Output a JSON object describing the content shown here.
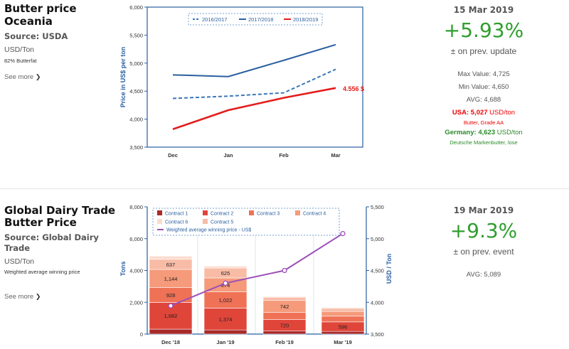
{
  "panel1": {
    "title_line1": "Butter price",
    "title_line2": "Oceania",
    "source": "Source: USDA",
    "unit": "USD/Ton",
    "note": "82% Butterfat",
    "see_more": "See more",
    "arrow": "❯",
    "date": "15 Mar 2019",
    "change": "+5.93%",
    "change_label": "± on prev. update",
    "max_value": "Max Value: 4,725",
    "min_value": "Min Value: 4,650",
    "avg": "AVG: 4,688",
    "usa_label": "USA: ",
    "usa_value": "5,027",
    "usa_unit": " USD/ton",
    "usa_note": "Butter, Grade AA",
    "germany_label": "Germany: ",
    "germany_value": "4,623",
    "germany_unit": " USD/ton",
    "germany_note": "Deutsche Markenbutter, lose",
    "accent_green": "#2e9e2e",
    "accent_red": "#e00000"
  },
  "panel2": {
    "title_line1": "Global Dairy Trade",
    "title_line2": "Butter Price",
    "source_line1": "Source: Global Dairy",
    "source_line2": "Trade",
    "unit": "USD/Ton",
    "note": "Weighted average winning price",
    "see_more": "See more",
    "arrow": "❯",
    "date": "19 Mar 2019",
    "change": "+9.3%",
    "change_label": "± on prev. event",
    "avg": "AVG: 5,089"
  },
  "chart_data": [
    {
      "type": "line",
      "categories": [
        "Dec",
        "Jan",
        "Feb",
        "Mar"
      ],
      "ylabel": "Price in US$ per ton",
      "ylim": [
        3500,
        6000
      ],
      "yticks": [
        "3,500",
        "4,000",
        "4,500",
        "5,000",
        "5,500",
        "6,000"
      ],
      "legend_position": "top",
      "series": [
        {
          "name": "2016/2017",
          "style": "dashed",
          "color": "#3a78b8",
          "values": [
            4370,
            4410,
            4470,
            4890
          ]
        },
        {
          "name": "2017/2018",
          "style": "solid",
          "color": "#2a5ea0",
          "values": [
            4790,
            4760,
            5050,
            5330
          ]
        },
        {
          "name": "2018/2019",
          "style": "solid",
          "color": "#e41c1c",
          "values": [
            3820,
            4160,
            4380,
            4556
          ]
        }
      ],
      "annotation": {
        "text": "4.556 $",
        "series": "2018/2019",
        "category": "Mar"
      }
    },
    {
      "type": "bar",
      "categories": [
        "Dec '18",
        "Jan '19",
        "Feb '19",
        "Mar '19"
      ],
      "ylabel": "Tons",
      "y2label": "USD / Ton",
      "ylim": [
        0,
        8000
      ],
      "yticks": [
        "0",
        "2,000",
        "4,000",
        "6,000",
        "8,000"
      ],
      "y2lim": [
        3500,
        5500
      ],
      "y2ticks": [
        "3,500",
        "4,000",
        "4,500",
        "5,000",
        "5,500"
      ],
      "stacked": true,
      "legend_position": "top",
      "series": [
        {
          "name": "Contract 1",
          "color": "#a82a2a",
          "values": [
            310,
            260,
            190,
            170
          ]
        },
        {
          "name": "Contract 2",
          "color": "#e0453a",
          "values": [
            1682,
            1374,
            720,
            596
          ]
        },
        {
          "name": "Contract 3",
          "color": "#ef7256",
          "values": [
            928,
            1022,
            460,
            360
          ]
        },
        {
          "name": "Contract 4",
          "color": "#f59a7a",
          "values": [
            1144,
            874,
            742,
            300
          ]
        },
        {
          "name": "Contract 5",
          "color": "#f8bca6",
          "values": [
            637,
            625,
            200,
            190
          ]
        },
        {
          "name": "Contract 6",
          "color": "#fbdccf",
          "values": [
            200,
            120,
            50,
            60
          ]
        }
      ],
      "bar_labels": [
        {
          "cat": 0,
          "series": 1,
          "text": "1,682"
        },
        {
          "cat": 0,
          "series": 2,
          "text": "928"
        },
        {
          "cat": 0,
          "series": 3,
          "text": "1,144"
        },
        {
          "cat": 0,
          "series": 4,
          "text": "637"
        },
        {
          "cat": 1,
          "series": 1,
          "text": "1,374"
        },
        {
          "cat": 1,
          "series": 2,
          "text": "1,022"
        },
        {
          "cat": 1,
          "series": 3,
          "text": "874"
        },
        {
          "cat": 1,
          "series": 4,
          "text": "625"
        },
        {
          "cat": 2,
          "series": 1,
          "text": "720"
        },
        {
          "cat": 2,
          "series": 3,
          "text": "742"
        },
        {
          "cat": 3,
          "series": 1,
          "text": "596"
        }
      ],
      "line_series": {
        "name": "Weighted average winning price - US$",
        "color": "#9b4fb8",
        "axis": "right",
        "values": [
          3945,
          4300,
          4500,
          5080
        ]
      }
    }
  ]
}
